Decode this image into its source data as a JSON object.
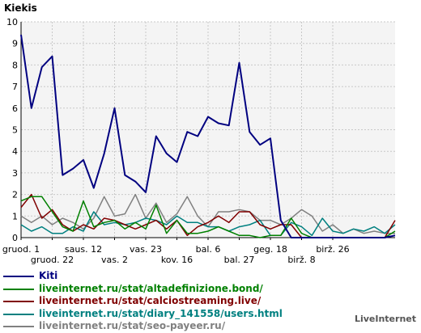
{
  "chart_data": {
    "type": "line",
    "title": "Kiekis",
    "ylim": [
      0,
      10
    ],
    "yticks": [
      "0",
      "1",
      "2",
      "3",
      "4",
      "5",
      "6",
      "7",
      "8",
      "9",
      "10"
    ],
    "x_count": 37,
    "grid": true,
    "legend_position": "bottom",
    "x_tick_labels": [
      {
        "i": 0,
        "label": "gruod. 1",
        "row": 0
      },
      {
        "i": 3,
        "label": "gruod. 22",
        "row": 1
      },
      {
        "i": 6,
        "label": "saus. 12",
        "row": 0
      },
      {
        "i": 9,
        "label": "vas. 2",
        "row": 1
      },
      {
        "i": 12,
        "label": "vas. 23",
        "row": 0
      },
      {
        "i": 15,
        "label": "kov. 16",
        "row": 1
      },
      {
        "i": 18,
        "label": "bal. 6",
        "row": 0
      },
      {
        "i": 21,
        "label": "bal. 27",
        "row": 1
      },
      {
        "i": 24,
        "label": "geg. 18",
        "row": 0
      },
      {
        "i": 27,
        "label": "birž. 8",
        "row": 1
      },
      {
        "i": 30,
        "label": "birž. 26",
        "row": 0
      }
    ],
    "series": [
      {
        "name": "Kiti",
        "color": "#000080",
        "width": 2,
        "values": [
          9.4,
          6.0,
          7.9,
          8.4,
          2.9,
          3.2,
          3.6,
          2.3,
          3.9,
          6.0,
          2.9,
          2.6,
          2.1,
          4.7,
          3.9,
          3.5,
          4.9,
          4.7,
          5.6,
          5.3,
          5.2,
          8.1,
          4.9,
          4.3,
          4.6,
          0.8,
          0,
          0,
          0,
          0,
          0,
          0,
          0,
          0,
          0,
          0,
          0.1
        ]
      },
      {
        "name": "liveinternet.ru/stat/altadefinizione.bond/",
        "color": "#008000",
        "width": 1.5,
        "values": [
          1.7,
          1.9,
          1.9,
          1.2,
          0.5,
          0.3,
          1.7,
          0.5,
          0.7,
          0.8,
          0.4,
          0.7,
          0.4,
          1.5,
          0.2,
          0.8,
          0.2,
          0.2,
          0.3,
          0.5,
          0.3,
          0.1,
          0.1,
          0.0,
          0.1,
          0.1,
          0.9,
          0.2,
          0.0,
          0.0,
          0.0,
          0.0,
          0.0,
          0.0,
          0.0,
          0.0,
          0.3
        ]
      },
      {
        "name": "liveinternet.ru/stat/calciostreaming.live/",
        "color": "#800000",
        "width": 1.5,
        "values": [
          1.4,
          2.0,
          0.9,
          1.3,
          0.6,
          0.3,
          0.6,
          0.4,
          0.9,
          0.8,
          0.6,
          0.4,
          0.6,
          0.8,
          0.4,
          0.8,
          0.1,
          0.5,
          0.7,
          1.0,
          0.7,
          1.2,
          1.2,
          0.6,
          0.4,
          0.6,
          0.6,
          0.0,
          0.0,
          0.0,
          0.0,
          0.0,
          0.0,
          0.0,
          0.0,
          0.0,
          0.8
        ]
      },
      {
        "name": "liveinternet.ru/stat/diary_141558/users.html",
        "color": "#008080",
        "width": 1.5,
        "values": [
          0.6,
          0.3,
          0.5,
          0.2,
          0.2,
          0.5,
          0.3,
          1.2,
          0.6,
          0.7,
          0.6,
          0.7,
          0.9,
          0.8,
          0.6,
          1.0,
          0.7,
          0.7,
          0.5,
          0.5,
          0.3,
          0.5,
          0.6,
          0.8,
          0.1,
          0.1,
          0.7,
          0.5,
          0.1,
          0.9,
          0.3,
          0.2,
          0.4,
          0.3,
          0.5,
          0.2,
          0.6
        ]
      },
      {
        "name": "liveinternet.ru/stat/seo-payeer.ru/",
        "color": "#808080",
        "width": 1.5,
        "values": [
          1.0,
          0.7,
          1.0,
          0.6,
          0.9,
          0.7,
          0.4,
          0.9,
          1.9,
          1.0,
          1.1,
          2.0,
          0.9,
          1.6,
          0.7,
          1.1,
          1.9,
          1.0,
          0.5,
          1.2,
          1.2,
          1.3,
          1.2,
          0.8,
          0.8,
          0.6,
          0.9,
          1.3,
          1.0,
          0.3,
          0.6,
          0.2,
          0.4,
          0.2,
          0.3,
          0.2,
          0.2
        ]
      }
    ]
  },
  "watermark": "LiveInternet"
}
